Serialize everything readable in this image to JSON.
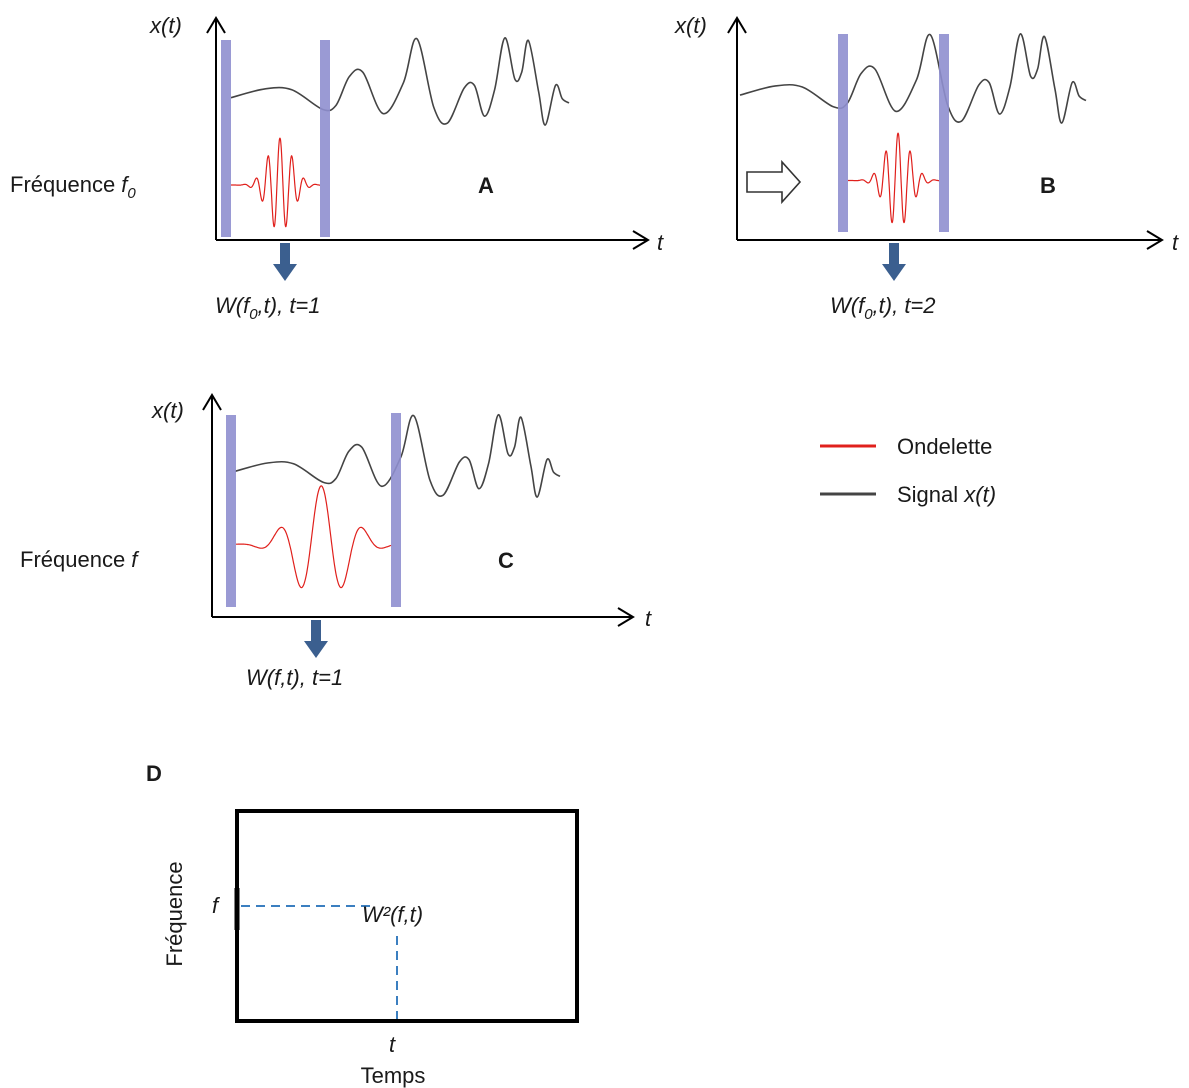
{
  "panels": {
    "A": {
      "letter": "A",
      "y_axis_label": "x(t)",
      "x_axis_label": "t",
      "freq_prefix": "Fréquence ",
      "freq_symbol": "f",
      "freq_sub": "0",
      "out_pre": "W(f",
      "out_sub": "0",
      "out_post": ",t), t=1"
    },
    "B": {
      "letter": "B",
      "y_axis_label": "x(t)",
      "x_axis_label": "t",
      "out_pre": "W(f",
      "out_sub": "0",
      "out_post": ",t), t=2"
    },
    "C": {
      "letter": "C",
      "y_axis_label": "x(t)",
      "x_axis_label": "t",
      "freq_prefix": "Fréquence ",
      "freq_symbol": "f",
      "out_label": "W(f,t), t=1"
    },
    "D": {
      "letter": "D",
      "y_axis_label": "Fréquence",
      "x_axis_label": "Temps",
      "f_tick": "f",
      "t_tick": "t",
      "point_label": "W²(f,t)"
    }
  },
  "legend": {
    "wavelet_label": "Ondelette",
    "signal_prefix": "Signal ",
    "signal_var": "x(t)",
    "wavelet_color": "#e0201c",
    "signal_color": "#444444"
  },
  "colors": {
    "window": "#8f8fcf",
    "arrow": "#3b5f8f",
    "dashed": "#3b7fc0"
  }
}
